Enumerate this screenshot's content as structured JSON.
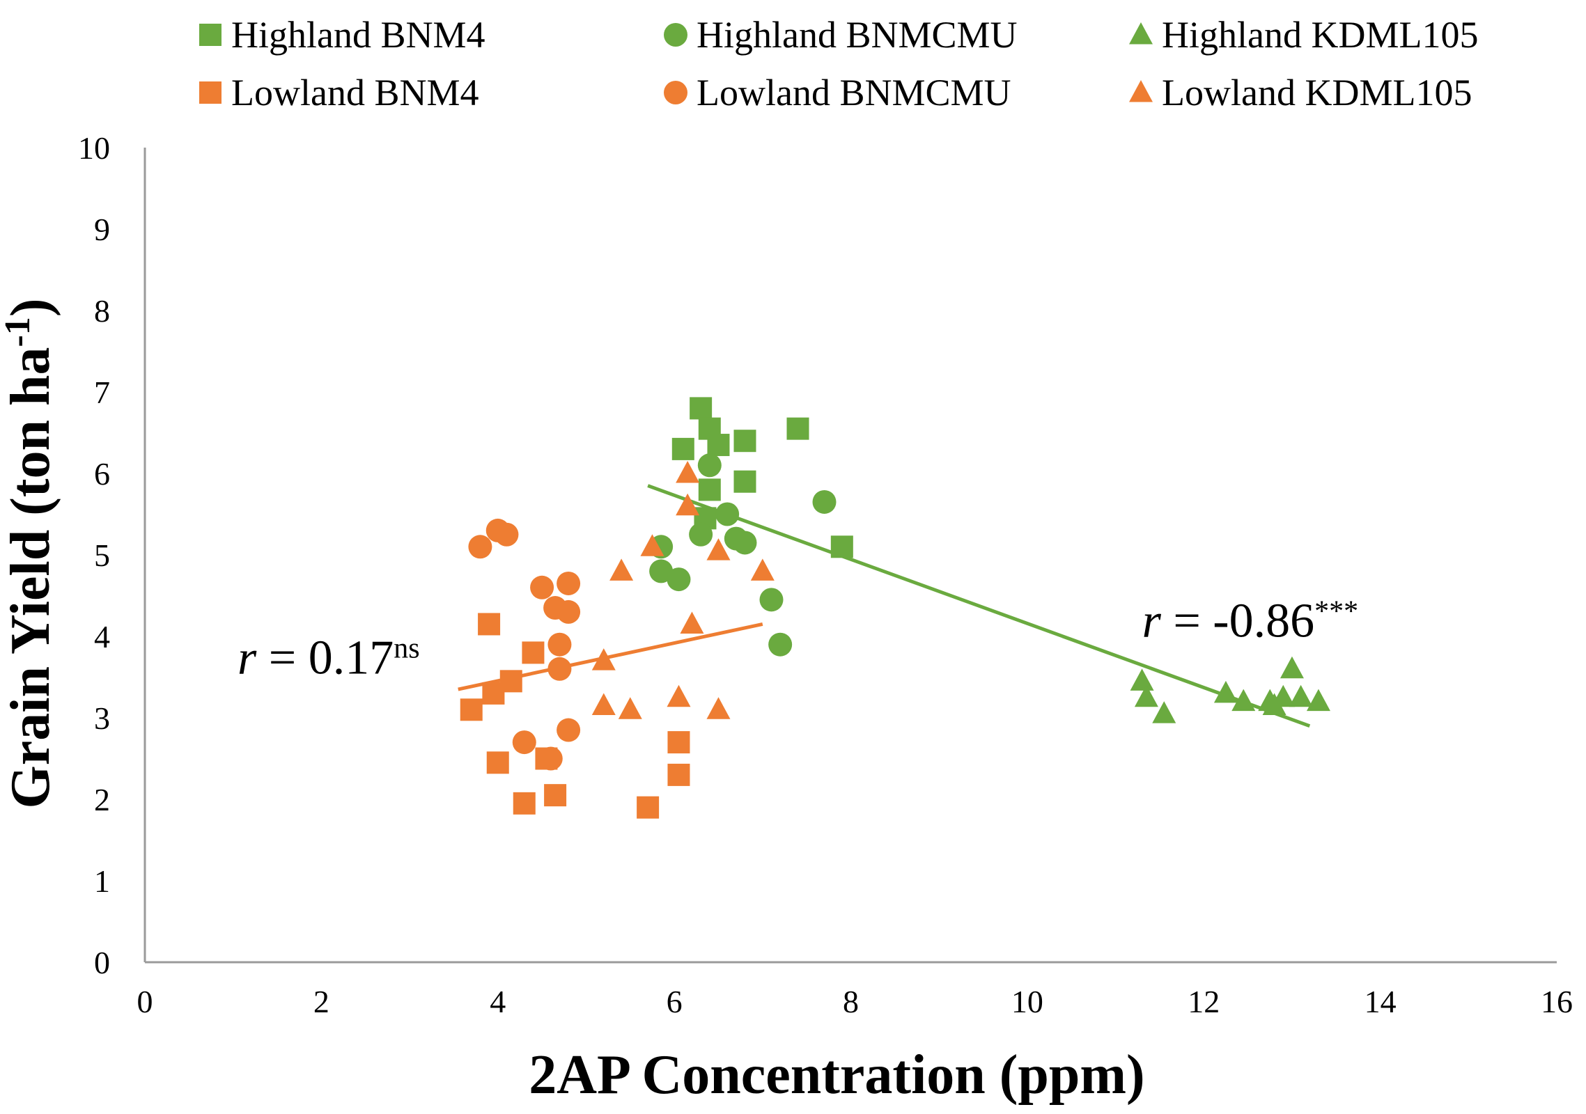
{
  "chart_data": {
    "type": "scatter",
    "xlabel": "2AP Concentration (ppm)",
    "ylabel": "Grain Yield (ton ha",
    "ylabel_sup": "-1",
    "ylabel_close": ")",
    "xlim": [
      0,
      16
    ],
    "ylim": [
      0,
      10
    ],
    "x_ticks": [
      0,
      2,
      4,
      6,
      8,
      10,
      12,
      14,
      16
    ],
    "y_ticks": [
      0,
      1,
      2,
      3,
      4,
      5,
      6,
      7,
      8,
      9,
      10
    ],
    "grid": false,
    "legend_position": "top",
    "colors": {
      "highland": "#6aaa3f",
      "lowland": "#ee7d32"
    },
    "series": [
      {
        "name": "Highland BNM4",
        "marker": "square",
        "color": "#6aaa3f",
        "points": [
          [
            6.3,
            6.8
          ],
          [
            6.4,
            6.55
          ],
          [
            6.1,
            6.3
          ],
          [
            6.5,
            6.35
          ],
          [
            6.8,
            6.4
          ],
          [
            7.4,
            6.55
          ],
          [
            6.8,
            5.9
          ],
          [
            6.4,
            5.8
          ],
          [
            6.35,
            5.45
          ],
          [
            7.9,
            5.1
          ]
        ]
      },
      {
        "name": "Highland BNMCMU",
        "marker": "circle",
        "color": "#6aaa3f",
        "points": [
          [
            6.4,
            6.1
          ],
          [
            5.85,
            5.1
          ],
          [
            5.85,
            4.8
          ],
          [
            6.05,
            4.7
          ],
          [
            6.3,
            5.25
          ],
          [
            6.6,
            5.5
          ],
          [
            6.7,
            5.2
          ],
          [
            6.8,
            5.15
          ],
          [
            7.7,
            5.65
          ],
          [
            7.1,
            4.45
          ],
          [
            7.2,
            3.9
          ]
        ]
      },
      {
        "name": "Highland KDML105",
        "marker": "triangle",
        "color": "#6aaa3f",
        "points": [
          [
            11.3,
            3.45
          ],
          [
            11.35,
            3.25
          ],
          [
            11.55,
            3.05
          ],
          [
            12.25,
            3.3
          ],
          [
            12.45,
            3.2
          ],
          [
            12.75,
            3.2
          ],
          [
            12.8,
            3.15
          ],
          [
            12.9,
            3.25
          ],
          [
            13.0,
            3.6
          ],
          [
            13.1,
            3.25
          ],
          [
            13.3,
            3.2
          ]
        ]
      },
      {
        "name": "Lowland BNM4",
        "marker": "square",
        "color": "#ee7d32",
        "points": [
          [
            3.9,
            4.15
          ],
          [
            3.95,
            3.3
          ],
          [
            4.15,
            3.45
          ],
          [
            3.7,
            3.1
          ],
          [
            4.4,
            3.8
          ],
          [
            4.0,
            2.45
          ],
          [
            4.3,
            1.95
          ],
          [
            4.55,
            2.5
          ],
          [
            4.65,
            2.05
          ],
          [
            5.7,
            1.9
          ],
          [
            6.05,
            2.3
          ],
          [
            6.05,
            2.7
          ]
        ]
      },
      {
        "name": "Lowland BNMCMU",
        "marker": "circle",
        "color": "#ee7d32",
        "points": [
          [
            3.8,
            5.1
          ],
          [
            4.0,
            5.3
          ],
          [
            4.1,
            5.25
          ],
          [
            4.5,
            4.6
          ],
          [
            4.8,
            4.65
          ],
          [
            4.65,
            4.35
          ],
          [
            4.8,
            4.3
          ],
          [
            4.7,
            3.9
          ],
          [
            4.7,
            3.6
          ],
          [
            4.3,
            2.7
          ],
          [
            4.6,
            2.5
          ],
          [
            4.8,
            2.85
          ]
        ]
      },
      {
        "name": "Lowland KDML105",
        "marker": "triangle",
        "color": "#ee7d32",
        "points": [
          [
            5.2,
            3.7
          ],
          [
            5.2,
            3.15
          ],
          [
            5.5,
            3.1
          ],
          [
            5.4,
            4.8
          ],
          [
            5.75,
            5.1
          ],
          [
            6.15,
            6.0
          ],
          [
            6.15,
            5.6
          ],
          [
            6.2,
            4.15
          ],
          [
            6.05,
            3.25
          ],
          [
            6.5,
            5.05
          ],
          [
            6.5,
            3.1
          ],
          [
            7.0,
            4.8
          ]
        ]
      }
    ],
    "trendlines": [
      {
        "group": "Lowland",
        "color": "#ee7d32",
        "from": [
          3.55,
          3.35
        ],
        "to": [
          7.0,
          4.15
        ]
      },
      {
        "group": "Highland",
        "color": "#6aaa3f",
        "from": [
          5.7,
          5.85
        ],
        "to": [
          13.2,
          2.9
        ]
      }
    ],
    "annotations": [
      {
        "italic": "r",
        "text": " = 0.17",
        "sup": "ns",
        "x": 1.05,
        "y": 3.75
      },
      {
        "italic": "r",
        "text": " = -0.86",
        "sup": "***",
        "x": 11.3,
        "y": 4.2
      }
    ]
  }
}
